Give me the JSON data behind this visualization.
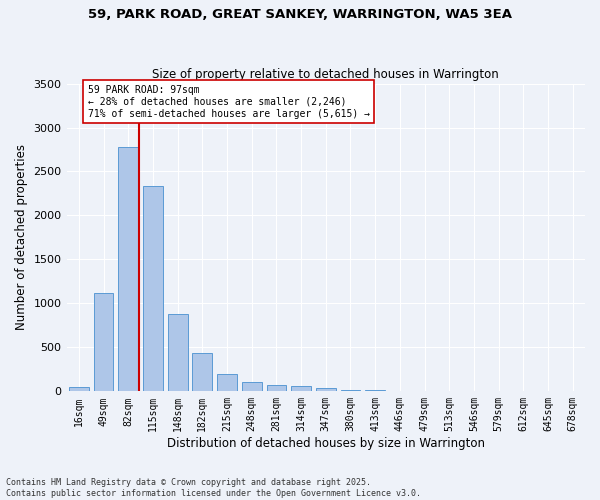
{
  "title_line1": "59, PARK ROAD, GREAT SANKEY, WARRINGTON, WA5 3EA",
  "title_line2": "Size of property relative to detached houses in Warrington",
  "xlabel": "Distribution of detached houses by size in Warrington",
  "ylabel": "Number of detached properties",
  "bins": [
    "16sqm",
    "49sqm",
    "82sqm",
    "115sqm",
    "148sqm",
    "182sqm",
    "215sqm",
    "248sqm",
    "281sqm",
    "314sqm",
    "347sqm",
    "380sqm",
    "413sqm",
    "446sqm",
    "479sqm",
    "513sqm",
    "546sqm",
    "579sqm",
    "612sqm",
    "645sqm",
    "678sqm"
  ],
  "values": [
    50,
    1120,
    2780,
    2340,
    880,
    440,
    200,
    110,
    75,
    55,
    40,
    20,
    15,
    8,
    5,
    3,
    2,
    1,
    1,
    0,
    0
  ],
  "bar_color": "#aec6e8",
  "bar_edge_color": "#5b9bd5",
  "vline_color": "#cc0000",
  "annotation_text": "59 PARK ROAD: 97sqm\n← 28% of detached houses are smaller (2,246)\n71% of semi-detached houses are larger (5,615) →",
  "annotation_box_color": "#ffffff",
  "annotation_box_edge": "#cc0000",
  "background_color": "#eef2f9",
  "grid_color": "#ffffff",
  "ylim": [
    0,
    3500
  ],
  "footnote1": "Contains HM Land Registry data © Crown copyright and database right 2025.",
  "footnote2": "Contains public sector information licensed under the Open Government Licence v3.0."
}
